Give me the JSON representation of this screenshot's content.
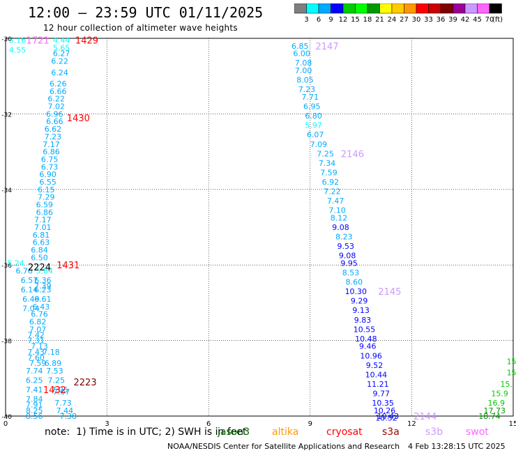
{
  "title": "12:00 – 23:59 UTC 01/11/2025",
  "subtitle": "12 hour collection of altimeter wave heights",
  "colorbar": {
    "labels": [
      "3",
      "6",
      "9",
      "12",
      "15",
      "18",
      "21",
      "24",
      "27",
      "30",
      "33",
      "36",
      "39",
      "42",
      "45",
      "70"
    ],
    "unit": "(ft)",
    "colors": [
      "#7f7f7f",
      "#00ffff",
      "#00aaff",
      "#0000ff",
      "#00cc00",
      "#00ff00",
      "#009900",
      "#ffff00",
      "#ffcc00",
      "#ff9900",
      "#ff0000",
      "#cc0000",
      "#800000",
      "#990099",
      "#cc99ff",
      "#ff66ff",
      "#000000"
    ]
  },
  "note": "note:  1) Time is in UTC; 2) SWH is in feet",
  "credit": "NOAA/NESDIS Center for Satellite Applications and Research",
  "timestamp": "4 Feb 13:28:15 UTC 2025",
  "satellites": [
    {
      "name": "jason3",
      "color": "#006600"
    },
    {
      "name": "altika",
      "color": "#ff9900"
    },
    {
      "name": "cryosat",
      "color": "#ff0000"
    },
    {
      "name": "s3a",
      "color": "#990000"
    },
    {
      "name": "s3b",
      "color": "#cc99ff"
    },
    {
      "name": "swot",
      "color": "#ff66ff"
    }
  ],
  "map": {
    "lat_ticks": [
      "-30",
      "-32",
      "-34",
      "-36",
      "-38",
      "-40"
    ],
    "lon_ticks": [
      "0",
      "3",
      "6",
      "9",
      "12",
      "15"
    ],
    "lat_range": [
      -40,
      -30
    ],
    "lon_range": [
      0,
      15
    ]
  },
  "tracks": [
    {
      "name": "track-west",
      "time_labels": [
        {
          "text": "1721",
          "color": "#ff66ff",
          "lat": -30.05,
          "lon": 0.95
        },
        {
          "text": "1429",
          "color": "#ff0000",
          "lat": -30.05,
          "lon": 2.4
        },
        {
          "text": "1430",
          "color": "#ff0000",
          "lat": -32.1,
          "lon": 2.15
        },
        {
          "text": "1431",
          "color": "#ff0000",
          "lat": -36.0,
          "lon": 1.85
        },
        {
          "text": "2224",
          "color": "#000000",
          "lat": -36.05,
          "lon": 1.0
        },
        {
          "text": "2223",
          "color": "#800000",
          "lat": -39.1,
          "lon": 2.35
        },
        {
          "text": "1432",
          "color": "#ff0000",
          "lat": -39.3,
          "lon": 1.45
        }
      ],
      "points": [
        {
          "v": "5.16",
          "lat": -30.05,
          "lon": 0.35,
          "c": "#00ffff"
        },
        {
          "v": "4.55",
          "lat": -30.3,
          "lon": 0.35,
          "c": "#00ffff"
        },
        {
          "v": "4.44",
          "lat": -30.05,
          "lon": 1.65,
          "c": "#00ffff"
        },
        {
          "v": "5.65",
          "lat": -30.25,
          "lon": 1.65,
          "c": "#00ffff"
        },
        {
          "v": "6.27",
          "lat": -30.4,
          "lon": 1.65,
          "c": "#00aaff"
        },
        {
          "v": "6.22",
          "lat": -30.6,
          "lon": 1.6,
          "c": "#00aaff"
        },
        {
          "v": "6.24",
          "lat": -30.9,
          "lon": 1.6,
          "c": "#00aaff"
        },
        {
          "v": "6.26",
          "lat": -31.2,
          "lon": 1.55,
          "c": "#00aaff"
        },
        {
          "v": "6.66",
          "lat": -31.4,
          "lon": 1.55,
          "c": "#00aaff"
        },
        {
          "v": "6.22",
          "lat": -31.6,
          "lon": 1.5,
          "c": "#00aaff"
        },
        {
          "v": "7.02",
          "lat": -31.8,
          "lon": 1.5,
          "c": "#00aaff"
        },
        {
          "v": "6.96",
          "lat": -32.0,
          "lon": 1.45,
          "c": "#00aaff"
        },
        {
          "v": "6.66",
          "lat": -32.2,
          "lon": 1.45,
          "c": "#00aaff"
        },
        {
          "v": "6.62",
          "lat": -32.4,
          "lon": 1.4,
          "c": "#00aaff"
        },
        {
          "v": "7.23",
          "lat": -32.6,
          "lon": 1.4,
          "c": "#00aaff"
        },
        {
          "v": "7.17",
          "lat": -32.8,
          "lon": 1.35,
          "c": "#00aaff"
        },
        {
          "v": "6.86",
          "lat": -33.0,
          "lon": 1.35,
          "c": "#00aaff"
        },
        {
          "v": "6.75",
          "lat": -33.2,
          "lon": 1.3,
          "c": "#00aaff"
        },
        {
          "v": "6.73",
          "lat": -33.4,
          "lon": 1.3,
          "c": "#00aaff"
        },
        {
          "v": "6.90",
          "lat": -33.6,
          "lon": 1.25,
          "c": "#00aaff"
        },
        {
          "v": "6.55",
          "lat": -33.8,
          "lon": 1.25,
          "c": "#00aaff"
        },
        {
          "v": "6.15",
          "lat": -34.0,
          "lon": 1.2,
          "c": "#00aaff"
        },
        {
          "v": "7.29",
          "lat": -34.2,
          "lon": 1.2,
          "c": "#00aaff"
        },
        {
          "v": "6.59",
          "lat": -34.4,
          "lon": 1.15,
          "c": "#00aaff"
        },
        {
          "v": "6.86",
          "lat": -34.6,
          "lon": 1.15,
          "c": "#00aaff"
        },
        {
          "v": "7.17",
          "lat": -34.8,
          "lon": 1.1,
          "c": "#00aaff"
        },
        {
          "v": "7.01",
          "lat": -35.0,
          "lon": 1.1,
          "c": "#00aaff"
        },
        {
          "v": "6.81",
          "lat": -35.2,
          "lon": 1.05,
          "c": "#00aaff"
        },
        {
          "v": "6.63",
          "lat": -35.4,
          "lon": 1.05,
          "c": "#00aaff"
        },
        {
          "v": "6.84",
          "lat": -35.6,
          "lon": 1.0,
          "c": "#00aaff"
        },
        {
          "v": "6.50",
          "lat": -35.8,
          "lon": 1.0,
          "c": "#00aaff"
        },
        {
          "v": "5.24",
          "lat": -35.95,
          "lon": 0.3,
          "c": "#00ffff"
        },
        {
          "v": "6.76",
          "lat": -36.15,
          "lon": 0.55,
          "c": "#00aaff"
        },
        {
          "v": "5.84",
          "lat": -36.15,
          "lon": 1.15,
          "c": "#00ffff"
        },
        {
          "v": "6.57",
          "lat": -36.4,
          "lon": 0.7,
          "c": "#00aaff"
        },
        {
          "v": "6.36",
          "lat": -36.4,
          "lon": 1.1,
          "c": "#00aaff"
        },
        {
          "v": "7.39",
          "lat": -36.55,
          "lon": 1.1,
          "c": "#00aaff"
        },
        {
          "v": "6.14",
          "lat": -36.65,
          "lon": 0.7,
          "c": "#00aaff"
        },
        {
          "v": "6.23",
          "lat": -36.65,
          "lon": 1.1,
          "c": "#00aaff"
        },
        {
          "v": "6.49",
          "lat": -36.9,
          "lon": 0.75,
          "c": "#00aaff"
        },
        {
          "v": "6.61",
          "lat": -36.9,
          "lon": 1.1,
          "c": "#00aaff"
        },
        {
          "v": "7.04",
          "lat": -37.15,
          "lon": 0.75,
          "c": "#00aaff"
        },
        {
          "v": "6.43",
          "lat": -37.1,
          "lon": 1.05,
          "c": "#00aaff"
        },
        {
          "v": "6.76",
          "lat": -37.3,
          "lon": 1.0,
          "c": "#00aaff"
        },
        {
          "v": "6.82",
          "lat": -37.5,
          "lon": 0.95,
          "c": "#00aaff"
        },
        {
          "v": "7.07",
          "lat": -37.7,
          "lon": 0.95,
          "c": "#00aaff"
        },
        {
          "v": "7.42",
          "lat": -37.85,
          "lon": 0.9,
          "c": "#00aaff"
        },
        {
          "v": "7.31",
          "lat": -38.0,
          "lon": 0.9,
          "c": "#00aaff"
        },
        {
          "v": "7.13",
          "lat": -38.15,
          "lon": 1.0,
          "c": "#00aaff"
        },
        {
          "v": "7.43",
          "lat": -38.3,
          "lon": 0.9,
          "c": "#00aaff"
        },
        {
          "v": "7.18",
          "lat": -38.3,
          "lon": 1.35,
          "c": "#00aaff"
        },
        {
          "v": "7.60",
          "lat": -38.45,
          "lon": 0.9,
          "c": "#00aaff"
        },
        {
          "v": "7.59",
          "lat": -38.6,
          "lon": 0.95,
          "c": "#00aaff"
        },
        {
          "v": "6.89",
          "lat": -38.6,
          "lon": 1.4,
          "c": "#00aaff"
        },
        {
          "v": "7.74",
          "lat": -38.8,
          "lon": 0.85,
          "c": "#00aaff"
        },
        {
          "v": "7.53",
          "lat": -38.8,
          "lon": 1.45,
          "c": "#00aaff"
        },
        {
          "v": "6.25",
          "lat": -39.05,
          "lon": 0.85,
          "c": "#00aaff"
        },
        {
          "v": "7.25",
          "lat": -39.05,
          "lon": 1.5,
          "c": "#00aaff"
        },
        {
          "v": "7.41",
          "lat": -39.3,
          "lon": 0.85,
          "c": "#00aaff"
        },
        {
          "v": "7.05",
          "lat": -39.3,
          "lon": 1.6,
          "c": "#00aaff"
        },
        {
          "v": "7.07",
          "lat": -39.35,
          "lon": 1.65,
          "c": "#00aaff"
        },
        {
          "v": "7.84",
          "lat": -39.55,
          "lon": 0.85,
          "c": "#00aaff"
        },
        {
          "v": "7.73",
          "lat": -39.65,
          "lon": 1.7,
          "c": "#00aaff"
        },
        {
          "v": "7.91",
          "lat": -39.7,
          "lon": 0.85,
          "c": "#00aaff"
        },
        {
          "v": "7.44",
          "lat": -39.85,
          "lon": 1.75,
          "c": "#00aaff"
        },
        {
          "v": "8.25",
          "lat": -39.85,
          "lon": 0.85,
          "c": "#00aaff"
        },
        {
          "v": "8.56",
          "lat": -40.0,
          "lon": 0.85,
          "c": "#00aaff"
        },
        {
          "v": "7.38",
          "lat": -40.0,
          "lon": 1.85,
          "c": "#00aaff"
        }
      ]
    },
    {
      "name": "track-east",
      "time_labels": [
        {
          "text": "2147",
          "color": "#cc99ff",
          "lat": -30.2,
          "lon": 9.5
        },
        {
          "text": "2146",
          "color": "#cc99ff",
          "lat": -33.05,
          "lon": 10.25
        },
        {
          "text": "2145",
          "color": "#cc99ff",
          "lat": -36.7,
          "lon": 11.35
        },
        {
          "text": "2144",
          "color": "#cc99ff",
          "lat": -40.0,
          "lon": 12.4
        }
      ],
      "points": [
        {
          "v": "6.85",
          "lat": -30.2,
          "lon": 8.7,
          "c": "#00aaff"
        },
        {
          "v": "6.00",
          "lat": -30.4,
          "lon": 8.75,
          "c": "#00aaff"
        },
        {
          "v": "7.08",
          "lat": -30.65,
          "lon": 8.8,
          "c": "#00aaff"
        },
        {
          "v": "7.00",
          "lat": -30.85,
          "lon": 8.8,
          "c": "#00aaff"
        },
        {
          "v": "8.05",
          "lat": -31.1,
          "lon": 8.85,
          "c": "#00aaff"
        },
        {
          "v": "7.23",
          "lat": -31.35,
          "lon": 8.9,
          "c": "#00aaff"
        },
        {
          "v": "7.71",
          "lat": -31.55,
          "lon": 9.0,
          "c": "#00aaff"
        },
        {
          "v": "6.95",
          "lat": -31.8,
          "lon": 9.05,
          "c": "#00aaff"
        },
        {
          "v": "6.80",
          "lat": -32.05,
          "lon": 9.1,
          "c": "#00aaff"
        },
        {
          "v": "5.97",
          "lat": -32.3,
          "lon": 9.1,
          "c": "#00ffff"
        },
        {
          "v": "6.07",
          "lat": -32.55,
          "lon": 9.15,
          "c": "#00aaff"
        },
        {
          "v": "7.09",
          "lat": -32.8,
          "lon": 9.25,
          "c": "#00aaff"
        },
        {
          "v": "7.25",
          "lat": -33.05,
          "lon": 9.45,
          "c": "#00aaff"
        },
        {
          "v": "7.34",
          "lat": -33.3,
          "lon": 9.5,
          "c": "#00aaff"
        },
        {
          "v": "7.59",
          "lat": -33.55,
          "lon": 9.55,
          "c": "#00aaff"
        },
        {
          "v": "6.92",
          "lat": -33.8,
          "lon": 9.6,
          "c": "#00aaff"
        },
        {
          "v": "7.22",
          "lat": -34.05,
          "lon": 9.65,
          "c": "#00aaff"
        },
        {
          "v": "7.47",
          "lat": -34.3,
          "lon": 9.75,
          "c": "#00aaff"
        },
        {
          "v": "7.10",
          "lat": -34.55,
          "lon": 9.8,
          "c": "#00aaff"
        },
        {
          "v": "8.12",
          "lat": -34.75,
          "lon": 9.85,
          "c": "#00aaff"
        },
        {
          "v": "9.08",
          "lat": -35.0,
          "lon": 9.9,
          "c": "#0000ff"
        },
        {
          "v": "8.23",
          "lat": -35.25,
          "lon": 10.0,
          "c": "#00aaff"
        },
        {
          "v": "9.53",
          "lat": -35.5,
          "lon": 10.05,
          "c": "#0000ff"
        },
        {
          "v": "9.08",
          "lat": -35.75,
          "lon": 10.1,
          "c": "#0000ff"
        },
        {
          "v": "9.95",
          "lat": -35.95,
          "lon": 10.15,
          "c": "#0000ff"
        },
        {
          "v": "8.53",
          "lat": -36.2,
          "lon": 10.2,
          "c": "#00aaff"
        },
        {
          "v": "8.60",
          "lat": -36.45,
          "lon": 10.3,
          "c": "#00aaff"
        },
        {
          "v": "10.30",
          "lat": -36.7,
          "lon": 10.35,
          "c": "#0000ff"
        },
        {
          "v": "9.29",
          "lat": -36.95,
          "lon": 10.45,
          "c": "#0000ff"
        },
        {
          "v": "9.13",
          "lat": -37.2,
          "lon": 10.5,
          "c": "#0000ff"
        },
        {
          "v": "9.83",
          "lat": -37.45,
          "lon": 10.55,
          "c": "#0000ff"
        },
        {
          "v": "10.55",
          "lat": -37.7,
          "lon": 10.6,
          "c": "#0000ff"
        },
        {
          "v": "10.48",
          "lat": -37.95,
          "lon": 10.65,
          "c": "#0000ff"
        },
        {
          "v": "9.46",
          "lat": -38.15,
          "lon": 10.7,
          "c": "#0000ff"
        },
        {
          "v": "10.96",
          "lat": -38.4,
          "lon": 10.8,
          "c": "#0000ff"
        },
        {
          "v": "9.52",
          "lat": -38.65,
          "lon": 10.9,
          "c": "#0000ff"
        },
        {
          "v": "10.44",
          "lat": -38.9,
          "lon": 10.95,
          "c": "#0000ff"
        },
        {
          "v": "11.21",
          "lat": -39.15,
          "lon": 11.0,
          "c": "#0000ff"
        },
        {
          "v": "9.77",
          "lat": -39.4,
          "lon": 11.1,
          "c": "#0000ff"
        },
        {
          "v": "10.35",
          "lat": -39.65,
          "lon": 11.15,
          "c": "#0000ff"
        },
        {
          "v": "10.26",
          "lat": -39.85,
          "lon": 11.2,
          "c": "#0000ff"
        },
        {
          "v": "10.43",
          "lat": -40.0,
          "lon": 11.3,
          "c": "#0000ff"
        },
        {
          "v": "10.52",
          "lat": -40.05,
          "lon": 11.25,
          "c": "#0000ff"
        }
      ]
    },
    {
      "name": "track-far-east",
      "time_labels": [],
      "points": [
        {
          "v": "15",
          "lat": -38.55,
          "lon": 14.95,
          "c": "#00cc00"
        },
        {
          "v": "15",
          "lat": -38.85,
          "lon": 14.95,
          "c": "#00cc00"
        },
        {
          "v": "15.",
          "lat": -39.15,
          "lon": 14.8,
          "c": "#00cc00"
        },
        {
          "v": "15.9",
          "lat": -39.4,
          "lon": 14.6,
          "c": "#00cc00"
        },
        {
          "v": "16.9",
          "lat": -39.65,
          "lon": 14.5,
          "c": "#00cc00"
        },
        {
          "v": "17.73",
          "lat": -39.85,
          "lon": 14.45,
          "c": "#009900"
        },
        {
          "v": "18.74",
          "lat": -40.0,
          "lon": 14.3,
          "c": "#009900"
        }
      ]
    }
  ]
}
